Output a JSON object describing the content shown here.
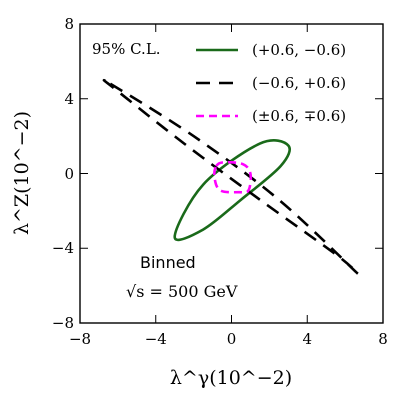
{
  "chart_data": {
    "type": "contour",
    "xlabel": "λ^γ(10^−2)",
    "ylabel": "λ^Z(10^−2)",
    "xlim": [
      -8,
      8
    ],
    "ylim": [
      -8,
      8
    ],
    "xticks": [
      "−8",
      "−4",
      "0",
      "4",
      "8"
    ],
    "yticks": [
      "8",
      "4",
      "0",
      "−4",
      "−8"
    ],
    "grid": false,
    "legend_title": "95% C.L.",
    "legend_position": "top-right",
    "series": [
      {
        "name": "(+0.6, −0.6)",
        "color": "#1a6a1a",
        "style": "solid",
        "points": [
          [
            -3.0,
            -3.4
          ],
          [
            -1.5,
            -0.6
          ],
          [
            1.5,
            1.6
          ],
          [
            3.0,
            1.5
          ],
          [
            2.6,
            0.4
          ],
          [
            0.5,
            -1.4
          ],
          [
            -1.5,
            -3.0
          ],
          [
            -3.0,
            -3.4
          ]
        ]
      },
      {
        "name": "(−0.6, +0.6)",
        "color": "#000000",
        "style": "dashed",
        "points": [
          [
            -6.4,
            4.8
          ],
          [
            -2.0,
            2.0
          ],
          [
            2.5,
            -1.4
          ],
          [
            6.5,
            -5.2
          ],
          [
            5.6,
            -4.4
          ],
          [
            1.5,
            -1.4
          ],
          [
            -2.5,
            1.6
          ],
          [
            -6.0,
            4.4
          ],
          [
            -6.4,
            4.8
          ]
        ]
      },
      {
        "name": "(±0.6, ∓0.6)",
        "color": "#ff00ff",
        "style": "dashed",
        "points": [
          [
            -0.8,
            0.4
          ],
          [
            -0.4,
            0.6
          ],
          [
            0.6,
            0.5
          ],
          [
            1.0,
            0.0
          ],
          [
            0.9,
            -0.9
          ],
          [
            0.4,
            -1.0
          ],
          [
            -0.6,
            -0.9
          ],
          [
            -0.9,
            -0.2
          ],
          [
            -0.8,
            0.4
          ]
        ]
      }
    ],
    "annotations": [
      "Binned",
      "√s = 500 GeV"
    ]
  }
}
